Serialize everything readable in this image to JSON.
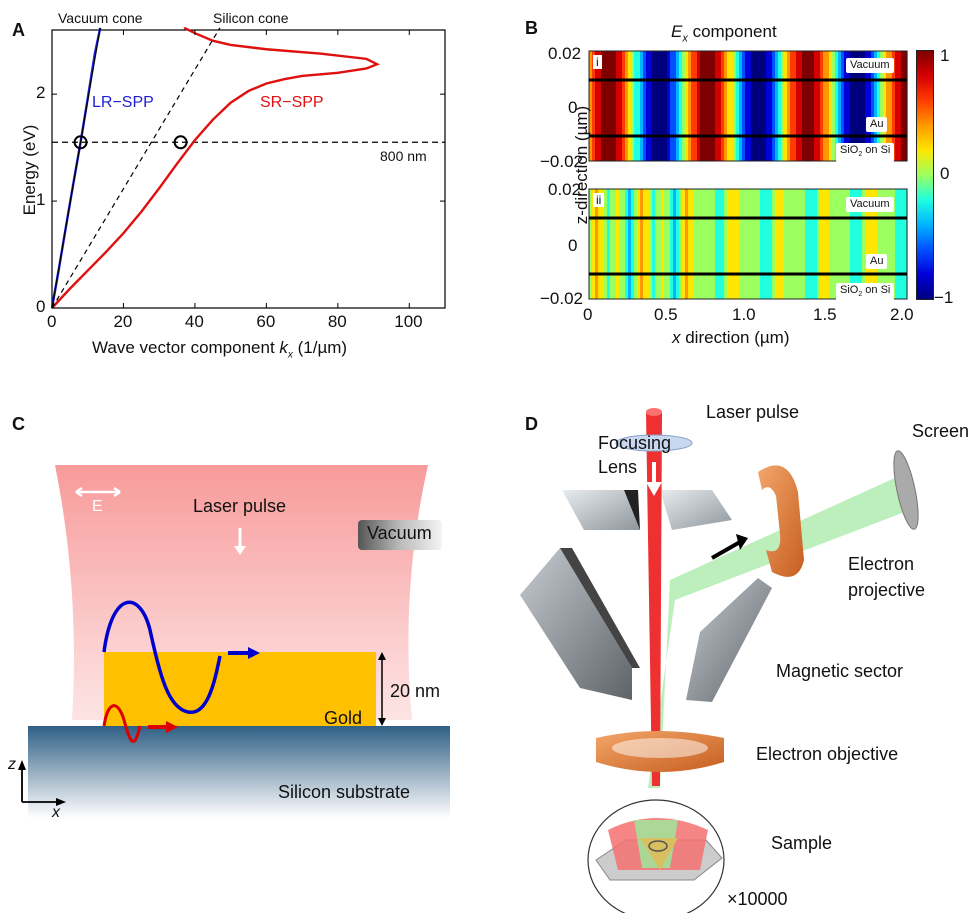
{
  "panels": {
    "a": "A",
    "b": "B",
    "c": "C",
    "d": "D"
  },
  "panel_a": {
    "vacuum_cone": "Vacuum cone",
    "silicon_cone": "Silicon cone",
    "lr_spp": "LR−SPP",
    "sr_spp": "SR−SPP",
    "wavelength": "800 nm",
    "ylabel": "Energy (eV)",
    "xlabel": "Wave vector component ",
    "xlabel_var": "k",
    "xlabel_sub": "x",
    "xlabel_unit": " (1/µm)",
    "xticks": [
      "0",
      "20",
      "40",
      "60",
      "80",
      "100"
    ],
    "yticks": [
      "0",
      "1",
      "2"
    ]
  },
  "panel_b": {
    "title_var": "E",
    "title_sub": "x",
    "title_rest": " component",
    "sub_i": "i",
    "sub_ii": "ii",
    "vacuum": "Vacuum",
    "au": "Au",
    "sio2": "SiO",
    "sio2_sub": "2",
    "sio2_rest": " on Si",
    "yticks": [
      "0.02",
      "0",
      "−0.02"
    ],
    "xticks": [
      "0",
      "0.5",
      "1.0",
      "1.5",
      "2.0"
    ],
    "ylabel": "z-direction (µm)",
    "xlabel_var": "x",
    "xlabel_rest": " direction (µm)",
    "cbar_ticks": [
      "1",
      "0",
      "−1"
    ]
  },
  "panel_c": {
    "e_label": "E",
    "laser_pulse": "Laser pulse",
    "vacuum": "Vacuum",
    "thickness": "20 nm",
    "gold": "Gold",
    "substrate": "Silicon substrate",
    "axis_z": "z",
    "axis_x": "x"
  },
  "panel_d": {
    "laser_pulse": "Laser pulse",
    "focusing_lens": "Focusing\nLens",
    "screen": "Screen",
    "electron_projective": "Electron\nprojective",
    "magnetic_sector": "Magnetic sector",
    "electron_objective": "Electron objective",
    "sample": "Sample",
    "magnification": "×10000"
  },
  "chart_data": {
    "type": "line",
    "title": "",
    "xlabel": "Wave vector component kx (1/µm)",
    "ylabel": "Energy (eV)",
    "xlim": [
      0,
      110
    ],
    "ylim": [
      0,
      2.6
    ],
    "series": [
      {
        "name": "LR−SPP",
        "color": "#1f1fd6",
        "x": [
          0,
          2,
          4,
          6,
          8,
          10,
          12,
          13.5
        ],
        "y": [
          0,
          0.38,
          0.78,
          1.17,
          1.55,
          1.96,
          2.38,
          2.62
        ]
      },
      {
        "name": "SR−SPP",
        "color": "#e01010",
        "x": [
          0,
          5,
          10,
          15,
          20,
          25,
          30,
          35,
          40,
          45,
          50,
          55,
          60,
          65,
          70,
          80,
          88,
          91,
          88,
          75,
          60,
          50,
          45,
          40,
          37
        ],
        "y": [
          0,
          0.18,
          0.35,
          0.52,
          0.7,
          0.9,
          1.12,
          1.35,
          1.57,
          1.76,
          1.92,
          2.03,
          2.1,
          2.14,
          2.17,
          2.2,
          2.24,
          2.28,
          2.33,
          2.38,
          2.42,
          2.46,
          2.5,
          2.57,
          2.62
        ]
      },
      {
        "name": "Vacuum cone",
        "color": "#000000",
        "x": [
          0,
          13.5
        ],
        "y": [
          0,
          2.62
        ]
      },
      {
        "name": "Silicon cone",
        "color": "#000000",
        "x": [
          0,
          47
        ],
        "y": [
          0,
          2.62
        ]
      }
    ],
    "markers": [
      {
        "x": 8,
        "y": 1.55
      },
      {
        "x": 36,
        "y": 1.55
      }
    ],
    "hline": {
      "y": 1.55,
      "label": "800 nm"
    }
  }
}
